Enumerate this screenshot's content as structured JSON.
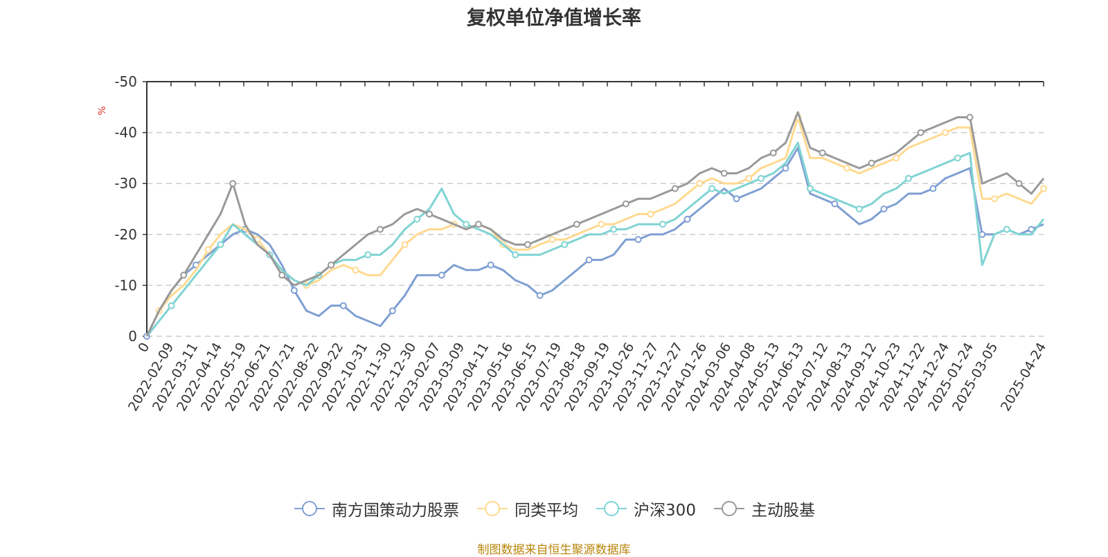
{
  "title": "复权单位净值增长率",
  "source": "制图数据来自恒生聚源数据库",
  "chart_data": {
    "type": "line",
    "title": "复权单位净值增长率",
    "ylabel": "%",
    "ylim": [
      -50,
      0
    ],
    "yticks": [
      0,
      -10,
      -20,
      -30,
      -40,
      -50
    ],
    "grid": "horizontal dashed",
    "legend_position": "bottom",
    "x_labels": [
      "0",
      "2022-02-09",
      "2022-03-11",
      "2022-04-14",
      "2022-05-19",
      "2022-06-21",
      "2022-07-21",
      "2022-08-22",
      "2022-09-22",
      "2022-10-31",
      "2022-11-30",
      "2022-12-30",
      "2023-02-07",
      "2023-03-09",
      "2023-04-11",
      "2023-05-16",
      "2023-06-15",
      "2023-07-19",
      "2023-08-18",
      "2023-09-19",
      "2023-10-26",
      "2023-11-27",
      "2023-12-27",
      "2024-01-26",
      "2024-03-06",
      "2024-04-08",
      "2024-05-13",
      "2024-06-13",
      "2024-07-12",
      "2024-08-13",
      "2024-09-12",
      "2024-10-23",
      "2024-11-22",
      "2024-12-24",
      "2025-01-24",
      "2025-03-05",
      "2025-04-24"
    ],
    "x_label_index": [
      0,
      1,
      2,
      3,
      4,
      5,
      6,
      7,
      8,
      9,
      10,
      11,
      12,
      13,
      14,
      15,
      16,
      17,
      18,
      19,
      20,
      21,
      22,
      23,
      24,
      25,
      26,
      27,
      28,
      29,
      30,
      31,
      32,
      33,
      34,
      35,
      37
    ],
    "n_points": 74,
    "series": [
      {
        "name": "南方国策动力股票",
        "color": "#7f9fd3",
        "values": [
          0,
          -5,
          -9,
          -12,
          -14,
          -16,
          -18,
          -20,
          -21,
          -20,
          -18,
          -14,
          -9,
          -5,
          -4,
          -6,
          -6,
          -4,
          -3,
          -2,
          -5,
          -8,
          -12,
          -12,
          -12,
          -14,
          -13,
          -13,
          -14,
          -13,
          -11,
          -10,
          -8,
          -9,
          -11,
          -13,
          -15,
          -15,
          -16,
          -19,
          -19,
          -20,
          -20,
          -21,
          -23,
          -25,
          -27,
          -29,
          -27,
          -28,
          -29,
          -31,
          -33,
          -37,
          -28,
          -27,
          -26,
          -24,
          -22,
          -23,
          -25,
          -26,
          -28,
          -28,
          -29,
          -31,
          -32,
          -33,
          -20,
          -20,
          -21,
          -20,
          -21,
          -22
        ]
      },
      {
        "name": "同类平均",
        "color": "#ffd98f",
        "values": [
          0,
          -5,
          -8,
          -10,
          -13,
          -17,
          -20,
          -22,
          -21,
          -19,
          -16,
          -13,
          -11,
          -10,
          -11,
          -13,
          -14,
          -13,
          -12,
          -12,
          -15,
          -18,
          -20,
          -21,
          -21,
          -22,
          -21,
          -22,
          -21,
          -18,
          -17,
          -17,
          -18,
          -19,
          -19,
          -20,
          -21,
          -22,
          -22,
          -23,
          -24,
          -24,
          -25,
          -26,
          -28,
          -30,
          -31,
          -30,
          -30,
          -31,
          -33,
          -34,
          -35,
          -43,
          -35,
          -35,
          -34,
          -33,
          -32,
          -33,
          -34,
          -35,
          -37,
          -38,
          -39,
          -40,
          -41,
          -41,
          -27,
          -27,
          -28,
          -27,
          -26,
          -29
        ]
      },
      {
        "name": "沪深300",
        "color": "#7fd3d3",
        "values": [
          0,
          -3,
          -6,
          -9,
          -12,
          -15,
          -18,
          -22,
          -20,
          -18,
          -16,
          -13,
          -11,
          -10,
          -12,
          -14,
          -15,
          -15,
          -16,
          -16,
          -18,
          -21,
          -23,
          -25,
          -29,
          -24,
          -22,
          -21,
          -20,
          -18,
          -16,
          -16,
          -16,
          -17,
          -18,
          -19,
          -20,
          -20,
          -21,
          -21,
          -22,
          -22,
          -22,
          -23,
          -25,
          -27,
          -29,
          -28,
          -29,
          -30,
          -31,
          -32,
          -34,
          -38,
          -29,
          -28,
          -27,
          -26,
          -25,
          -26,
          -28,
          -29,
          -31,
          -32,
          -33,
          -34,
          -35,
          -36,
          -14,
          -20,
          -21,
          -20,
          -20,
          -23
        ]
      },
      {
        "name": "主动股基",
        "color": "#999999",
        "values": [
          0,
          -5,
          -9,
          -12,
          -16,
          -20,
          -24,
          -30,
          -22,
          -18,
          -16,
          -12,
          -10,
          -11,
          -12,
          -14,
          -16,
          -18,
          -20,
          -21,
          -22,
          -24,
          -25,
          -24,
          -23,
          -22,
          -21,
          -22,
          -21,
          -19,
          -18,
          -18,
          -19,
          -20,
          -21,
          -22,
          -23,
          -24,
          -25,
          -26,
          -27,
          -27,
          -28,
          -29,
          -30,
          -32,
          -33,
          -32,
          -32,
          -33,
          -35,
          -36,
          -38,
          -44,
          -37,
          -36,
          -35,
          -34,
          -33,
          -34,
          -35,
          -36,
          -38,
          -40,
          -41,
          -42,
          -43,
          -43,
          -30,
          -31,
          -32,
          -30,
          -28,
          -31
        ]
      }
    ]
  }
}
